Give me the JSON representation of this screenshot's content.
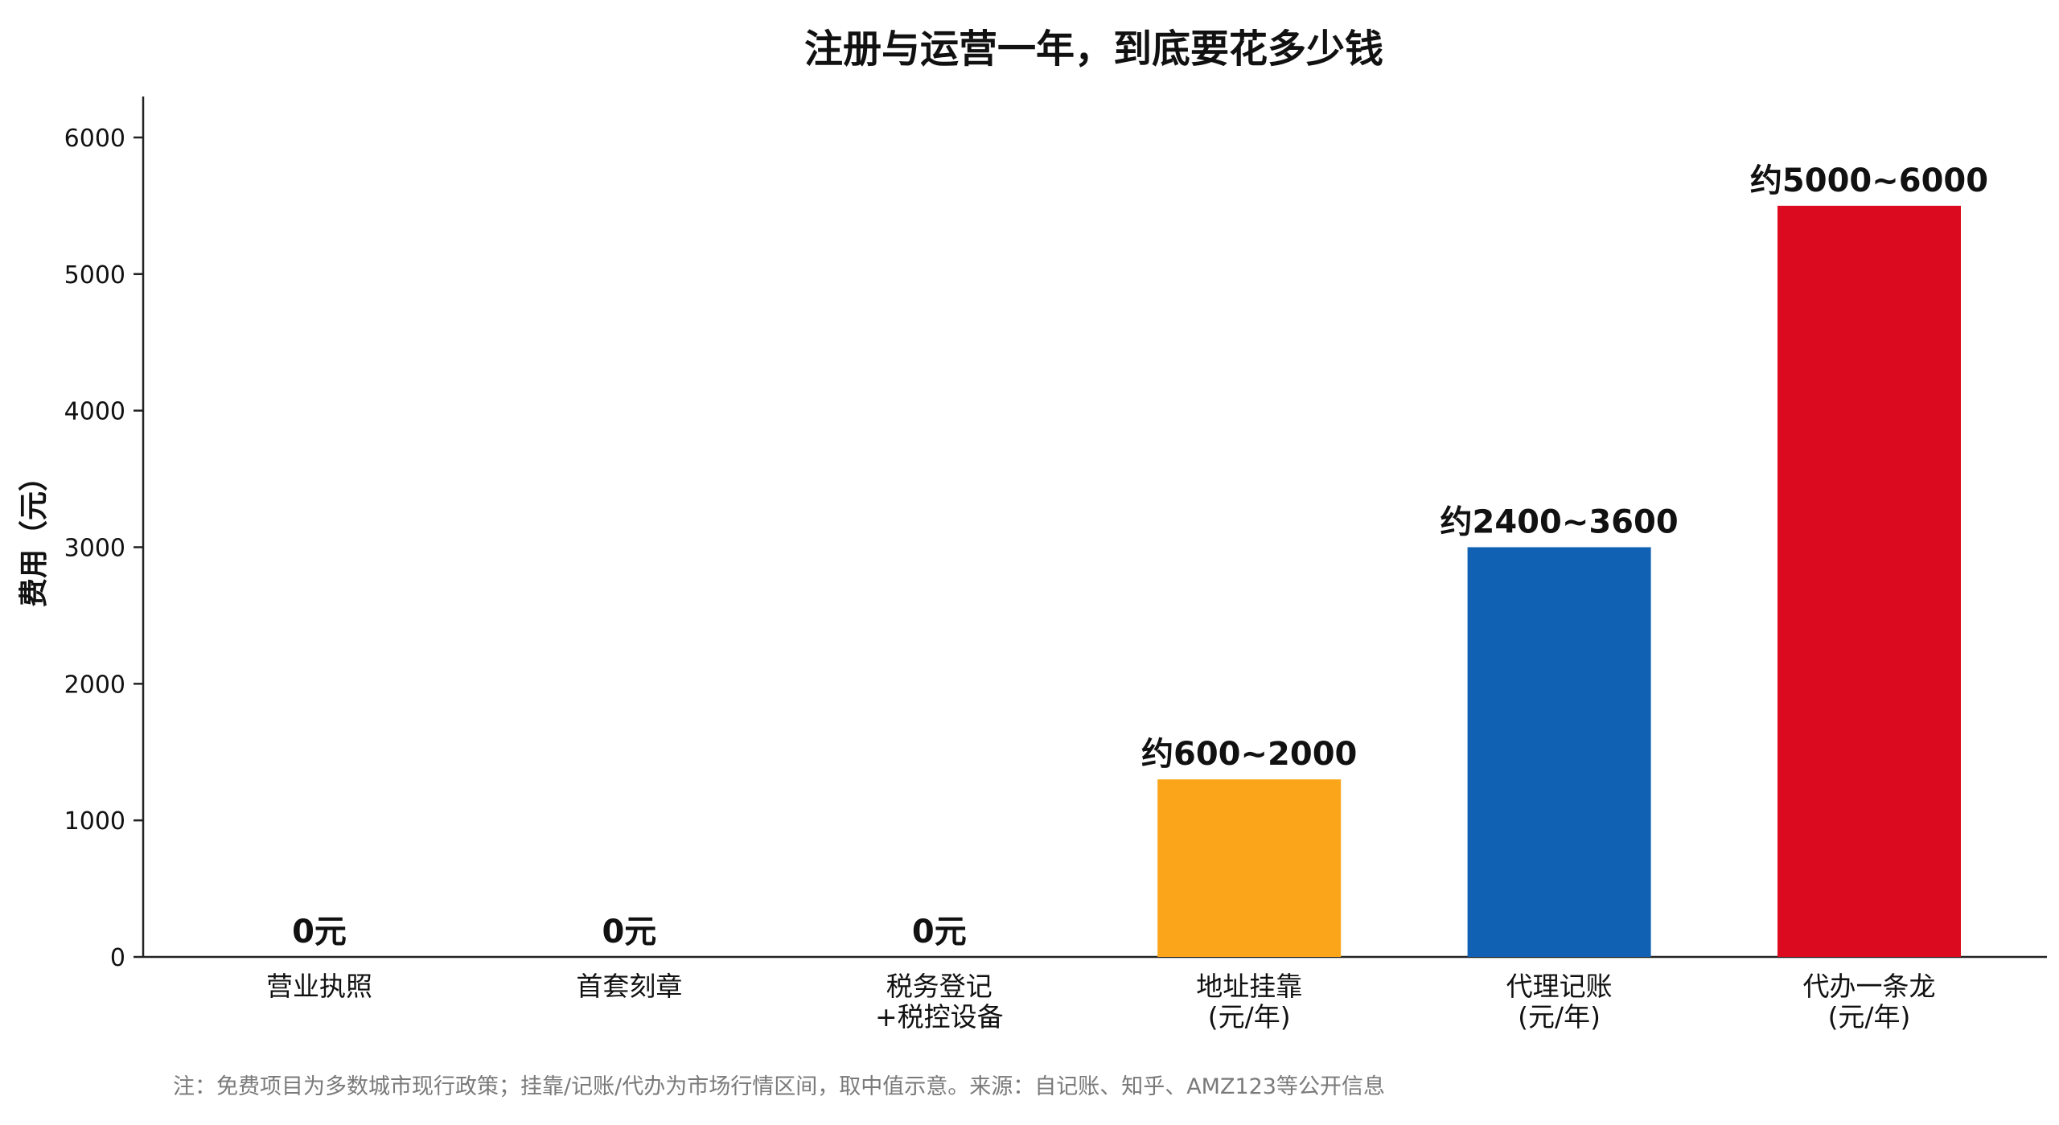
{
  "chart_data": {
    "type": "bar",
    "title": "注册与运营一年，到底要花多少钱",
    "xlabel": "",
    "ylabel": "费用（元）",
    "ylim": [
      0,
      6300
    ],
    "yticks": [
      0,
      1000,
      2000,
      3000,
      4000,
      5000,
      6000
    ],
    "grid": false,
    "legend": "none",
    "categories": [
      [
        "营业执照"
      ],
      [
        "首套刻章"
      ],
      [
        "税务登记",
        "+税控设备"
      ],
      [
        "地址挂靠",
        "(元/年)"
      ],
      [
        "代理记账",
        "(元/年)"
      ],
      [
        "代办一条龙",
        "(元/年)"
      ]
    ],
    "values": [
      0,
      0,
      0,
      1300,
      3000,
      5500
    ],
    "data_labels": [
      "0元",
      "0元",
      "0元",
      "约600~2000",
      "约2400~3600",
      "约5000~6000"
    ],
    "colors": [
      "#ffffff",
      "#ffffff",
      "#ffffff",
      "#fba51b",
      "#1060b4",
      "#dc0a1e"
    ],
    "footnote": "注：免费项目为多数城市现行政策；挂靠/记账/代办为市场行情区间，取中值示意。来源：自记账、知乎、AMZ123等公开信息"
  }
}
